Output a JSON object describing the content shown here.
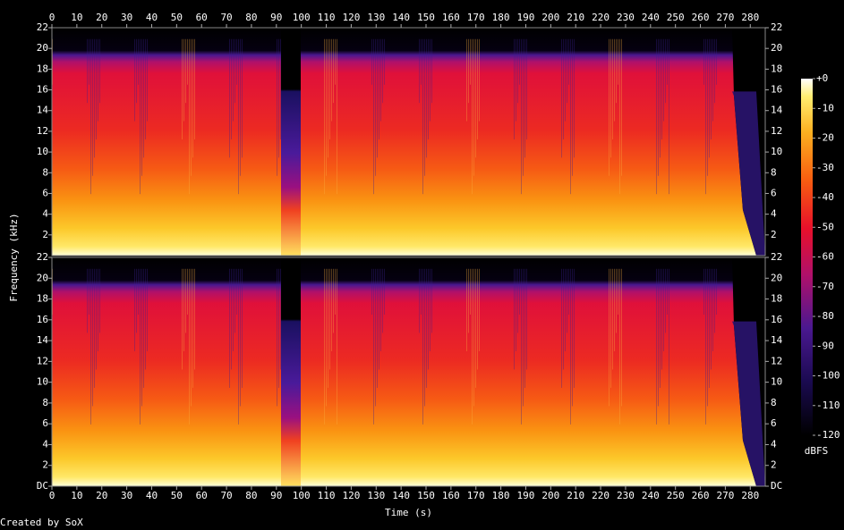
{
  "chart_data": [
    {
      "type": "spectrogram",
      "ylabel": "Frequency (kHz)",
      "xlim": [
        0,
        286
      ],
      "xticks": [
        0,
        10,
        20,
        30,
        40,
        50,
        60,
        70,
        80,
        90,
        100,
        110,
        120,
        130,
        140,
        150,
        160,
        170,
        180,
        190,
        200,
        210,
        220,
        230,
        240,
        250,
        260,
        270,
        280
      ],
      "ylim": [
        0,
        22
      ],
      "yticks": [
        2,
        4,
        6,
        8,
        10,
        12,
        14,
        16,
        18,
        20,
        22
      ],
      "colorbar": {
        "label": "dBFS",
        "lim": [
          -120,
          0
        ],
        "ticks": [
          {
            "value": 0,
            "label": "+0"
          },
          -10,
          -20,
          -30,
          -40,
          -50,
          -60,
          -70,
          -80,
          -90,
          -100,
          -110,
          -120
        ]
      }
    },
    {
      "type": "spectrogram",
      "xlabel": "Time (s)",
      "xlim": [
        0,
        286
      ],
      "xticks": [
        0,
        10,
        20,
        30,
        40,
        50,
        60,
        70,
        80,
        90,
        100,
        110,
        120,
        130,
        140,
        150,
        160,
        170,
        180,
        190,
        200,
        210,
        220,
        230,
        240,
        250,
        260,
        270,
        280
      ],
      "ylim": [
        0,
        22
      ],
      "yticks": [
        {
          "value": 0,
          "label": "DC"
        },
        2,
        4,
        6,
        8,
        10,
        12,
        14,
        16,
        18,
        20,
        22
      ]
    }
  ],
  "footer": "Created by SoX"
}
